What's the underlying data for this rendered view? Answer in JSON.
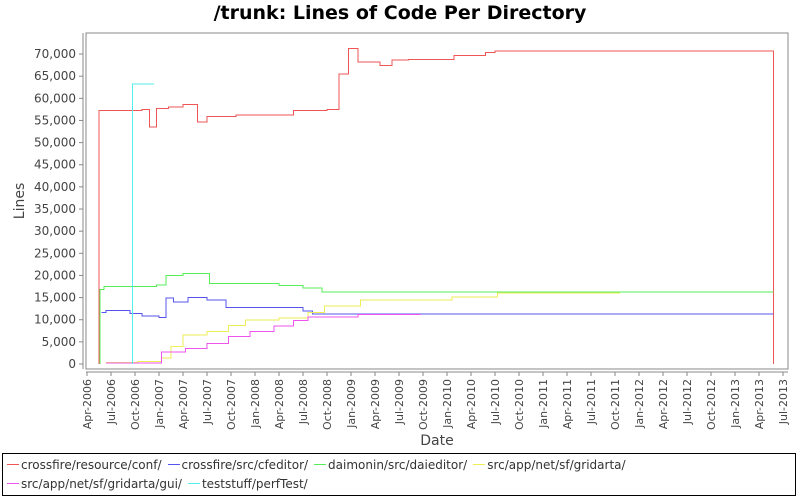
{
  "chart_data": {
    "type": "line",
    "title": "/trunk: Lines of Code Per Directory",
    "xlabel": "Date",
    "ylabel": "Lines",
    "ylim": [
      0,
      72500
    ],
    "grid": false,
    "legend_position": "bottom",
    "y_ticks": [
      "0",
      "5,000",
      "10,000",
      "15,000",
      "20,000",
      "25,000",
      "30,000",
      "35,000",
      "40,000",
      "45,000",
      "50,000",
      "55,000",
      "60,000",
      "65,000",
      "70,000"
    ],
    "x_ticks": [
      "Apr-2006",
      "Jul-2006",
      "Oct-2006",
      "Jan-2007",
      "Apr-2007",
      "Jul-2007",
      "Oct-2007",
      "Jan-2008",
      "Apr-2008",
      "Jul-2008",
      "Oct-2008",
      "Jan-2009",
      "Apr-2009",
      "Jul-2009",
      "Oct-2009",
      "Jan-2010",
      "Apr-2010",
      "Jul-2010",
      "Oct-2010",
      "Jan-2011",
      "Apr-2011",
      "Jul-2011",
      "Oct-2011",
      "Jan-2012",
      "Apr-2012",
      "Jul-2012",
      "Oct-2012",
      "Jan-2013",
      "Apr-2013",
      "Jul-2013"
    ],
    "x_units": "quarters since Apr-2006",
    "series": [
      {
        "name": "crossfire/resource/conf/",
        "color": "#ee5555",
        "points": [
          [
            0.5,
            0
          ],
          [
            0.5,
            57200
          ],
          [
            2.3,
            57200
          ],
          [
            2.3,
            57500
          ],
          [
            2.6,
            57500
          ],
          [
            2.6,
            53500
          ],
          [
            2.9,
            53500
          ],
          [
            2.9,
            57700
          ],
          [
            3.4,
            57700
          ],
          [
            3.4,
            58000
          ],
          [
            4.0,
            58000
          ],
          [
            4.0,
            58600
          ],
          [
            4.6,
            58600
          ],
          [
            4.6,
            54700
          ],
          [
            5.0,
            54700
          ],
          [
            5.0,
            55900
          ],
          [
            6.2,
            55900
          ],
          [
            6.2,
            56200
          ],
          [
            8.6,
            56200
          ],
          [
            8.6,
            57300
          ],
          [
            10.0,
            57300
          ],
          [
            10.0,
            57500
          ],
          [
            10.5,
            57500
          ],
          [
            10.5,
            65500
          ],
          [
            10.9,
            65500
          ],
          [
            10.9,
            71200
          ],
          [
            11.3,
            71200
          ],
          [
            11.3,
            68200
          ],
          [
            12.2,
            68200
          ],
          [
            12.2,
            67400
          ],
          [
            12.7,
            67400
          ],
          [
            12.7,
            68600
          ],
          [
            13.4,
            68600
          ],
          [
            13.4,
            68800
          ],
          [
            15.3,
            68800
          ],
          [
            15.3,
            69700
          ],
          [
            16.6,
            69700
          ],
          [
            16.6,
            70300
          ],
          [
            17.0,
            70300
          ],
          [
            17.0,
            70700
          ],
          [
            28.6,
            70700
          ],
          [
            28.6,
            0
          ]
        ]
      },
      {
        "name": "crossfire/src/cfeditor/",
        "color": "#5555ee",
        "points": [
          [
            0.6,
            11600
          ],
          [
            0.8,
            11600
          ],
          [
            0.8,
            12100
          ],
          [
            1.8,
            12100
          ],
          [
            1.8,
            11400
          ],
          [
            2.3,
            11400
          ],
          [
            2.3,
            10800
          ],
          [
            3.0,
            10800
          ],
          [
            3.0,
            10500
          ],
          [
            3.3,
            10500
          ],
          [
            3.3,
            14900
          ],
          [
            3.6,
            14900
          ],
          [
            3.6,
            14000
          ],
          [
            4.2,
            14000
          ],
          [
            4.2,
            15000
          ],
          [
            5.0,
            15000
          ],
          [
            5.0,
            14500
          ],
          [
            5.8,
            14500
          ],
          [
            5.8,
            12800
          ],
          [
            9.0,
            12800
          ],
          [
            9.0,
            12000
          ],
          [
            9.4,
            12000
          ],
          [
            9.4,
            11300
          ],
          [
            28.6,
            11300
          ]
        ]
      },
      {
        "name": "daimonin/src/daieditor/",
        "color": "#55ee55",
        "points": [
          [
            0.55,
            0
          ],
          [
            0.55,
            16800
          ],
          [
            0.7,
            16800
          ],
          [
            0.7,
            17500
          ],
          [
            2.9,
            17500
          ],
          [
            2.9,
            17800
          ],
          [
            3.3,
            17800
          ],
          [
            3.3,
            20000
          ],
          [
            4.0,
            20000
          ],
          [
            4.0,
            20400
          ],
          [
            5.1,
            20400
          ],
          [
            5.1,
            18200
          ],
          [
            8.0,
            18200
          ],
          [
            8.0,
            17700
          ],
          [
            9.0,
            17700
          ],
          [
            9.0,
            17200
          ],
          [
            9.8,
            17200
          ],
          [
            9.8,
            16300
          ],
          [
            28.6,
            16300
          ]
        ]
      },
      {
        "name": "src/app/net/sf/gridarta/",
        "color": "#eeee55",
        "points": [
          [
            0.8,
            300
          ],
          [
            2.1,
            300
          ],
          [
            2.1,
            600
          ],
          [
            3.1,
            600
          ],
          [
            3.1,
            1300
          ],
          [
            3.5,
            1300
          ],
          [
            3.5,
            4000
          ],
          [
            4.0,
            4000
          ],
          [
            4.0,
            6500
          ],
          [
            5.0,
            6500
          ],
          [
            5.0,
            7300
          ],
          [
            5.9,
            7300
          ],
          [
            5.9,
            8700
          ],
          [
            6.6,
            8700
          ],
          [
            6.6,
            9900
          ],
          [
            8.0,
            9900
          ],
          [
            8.0,
            10400
          ],
          [
            9.2,
            10400
          ],
          [
            9.2,
            11600
          ],
          [
            9.9,
            11600
          ],
          [
            9.9,
            13100
          ],
          [
            11.4,
            13100
          ],
          [
            11.4,
            14400
          ],
          [
            14.0,
            14400
          ],
          [
            14.0,
            14500
          ],
          [
            15.2,
            14500
          ],
          [
            15.2,
            15100
          ],
          [
            17.1,
            15100
          ],
          [
            17.1,
            16000
          ],
          [
            22.2,
            16000
          ]
        ]
      },
      {
        "name": "src/app/net/sf/gridarta/gui/",
        "color": "#ee55ee",
        "points": [
          [
            0.8,
            200
          ],
          [
            3.1,
            200
          ],
          [
            3.1,
            2700
          ],
          [
            4.1,
            2700
          ],
          [
            4.1,
            3500
          ],
          [
            5.0,
            3500
          ],
          [
            5.0,
            4600
          ],
          [
            5.9,
            4600
          ],
          [
            5.9,
            6200
          ],
          [
            6.8,
            6200
          ],
          [
            6.8,
            7300
          ],
          [
            7.8,
            7300
          ],
          [
            7.8,
            8600
          ],
          [
            8.6,
            8600
          ],
          [
            8.6,
            9800
          ],
          [
            9.2,
            9800
          ],
          [
            9.2,
            10600
          ],
          [
            11.3,
            10600
          ],
          [
            11.3,
            11200
          ],
          [
            13.9,
            11200
          ]
        ]
      },
      {
        "name": "teststuff/perfTest/",
        "color": "#55eeee",
        "points": [
          [
            1.9,
            0
          ],
          [
            1.9,
            63200
          ],
          [
            2.8,
            63200
          ]
        ]
      }
    ]
  },
  "legend": {
    "rows": [
      [
        {
          "label": "crossfire/resource/conf/",
          "color": "#ee5555"
        },
        {
          "label": "crossfire/src/cfeditor/",
          "color": "#5555ee"
        },
        {
          "label": "daimonin/src/daieditor/",
          "color": "#55ee55"
        },
        {
          "label": "src/app/net/sf/gridarta/",
          "color": "#eeee55"
        }
      ],
      [
        {
          "label": "src/app/net/sf/gridarta/gui/",
          "color": "#ee55ee"
        },
        {
          "label": "teststuff/perfTest/",
          "color": "#55eeee"
        }
      ]
    ]
  }
}
